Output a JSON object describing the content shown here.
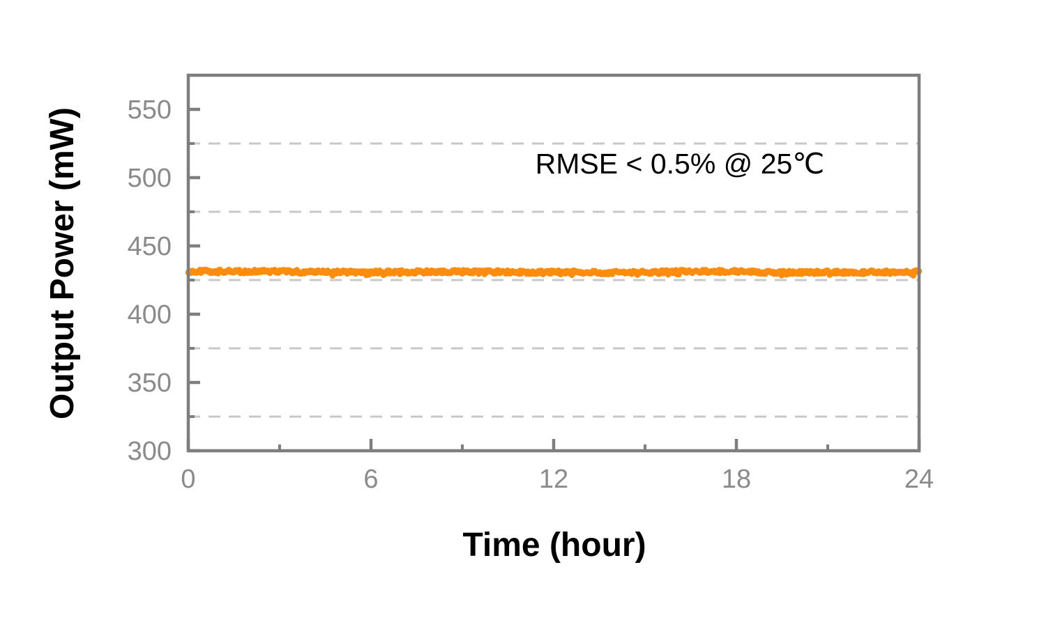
{
  "chart_data": {
    "type": "line",
    "title": "",
    "xlabel": "Time (hour)",
    "ylabel": "Output Power (mW)",
    "annotation": "RMSE < 0.5% @ 25℃",
    "xlim": [
      0,
      24
    ],
    "ylim": [
      300,
      575
    ],
    "x_major_ticks": [
      0,
      6,
      12,
      18,
      24
    ],
    "x_minor_ticks": [
      3,
      9,
      15,
      21
    ],
    "y_major_ticks": [
      300,
      350,
      400,
      450,
      500,
      550
    ],
    "y_minor_ticks": [
      325,
      375,
      425,
      475,
      525
    ],
    "grid": {
      "horizontal_dashed_at": [
        325,
        375,
        425,
        475,
        525
      ],
      "vertical": "off"
    },
    "legend": "none",
    "series": [
      {
        "name": "Output Power",
        "x": [
          0,
          1,
          2,
          3,
          4,
          5,
          6,
          7,
          8,
          9,
          10,
          11,
          12,
          13,
          14,
          15,
          16,
          17,
          18,
          19,
          20,
          21,
          22,
          23,
          24
        ],
        "values": [
          431.4,
          431.3,
          431.2,
          431.3,
          431.0,
          430.9,
          430.8,
          430.9,
          431.0,
          431.2,
          431.0,
          430.7,
          430.8,
          430.7,
          430.5,
          430.6,
          431.2,
          431.4,
          431.3,
          430.7,
          430.6,
          430.7,
          430.8,
          430.9,
          430.9
        ],
        "noise_mw": 1.3,
        "mean_mw": 431,
        "description": "Flat output power trace held near 431 mW over 24 hours"
      }
    ],
    "colors": {
      "line": "#FF8C0D",
      "axis": "#7E7E7E",
      "tick_label": "#8A8A8A",
      "grid": "#C8C8C8",
      "text": "#000000",
      "background": "#FFFFFF"
    }
  }
}
